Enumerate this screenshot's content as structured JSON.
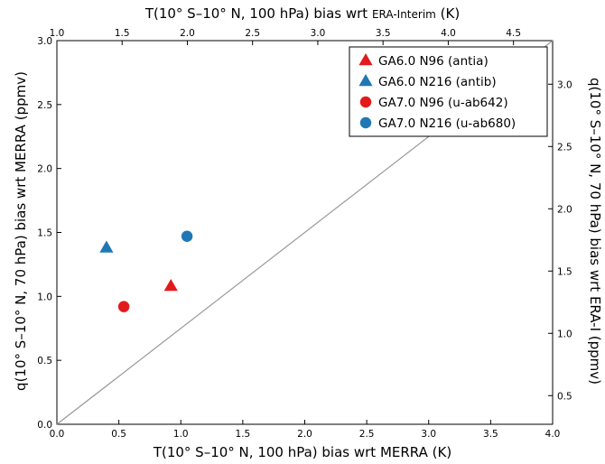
{
  "chart_data": {
    "type": "scatter",
    "bottom_axis": {
      "label": "T(10° S–10° N, 100 hPa) bias wrt MERRA (K)",
      "range": [
        0.0,
        4.0
      ],
      "ticks": [
        "0.0",
        "0.5",
        "1.0",
        "1.5",
        "2.0",
        "2.5",
        "3.0",
        "3.5",
        "4.0"
      ]
    },
    "left_axis": {
      "label": "q(10° S–10° N, 70 hPa) bias wrt MERRA (ppmv)",
      "range": [
        0.0,
        3.0
      ],
      "ticks": [
        "0.0",
        "0.5",
        "1.0",
        "1.5",
        "2.0",
        "2.5",
        "3.0"
      ]
    },
    "top_axis": {
      "label_main": "T(10° S–10° N, 100 hPa) bias wrt ",
      "label_tail": "ERA-Interim",
      "label_unit": " (K)",
      "range": [
        1.0,
        4.8
      ],
      "ticks": [
        "1.0",
        "1.5",
        "2.0",
        "2.5",
        "3.0",
        "3.5",
        "4.0",
        "4.5"
      ]
    },
    "right_axis": {
      "label": "q(10° S–10° N, 70 hPa) bias wrt ERA-I (ppmv)",
      "range": [
        0.27,
        3.35
      ],
      "ticks": [
        "0.5",
        "1.0",
        "1.5",
        "2.0",
        "2.5",
        "3.0"
      ]
    },
    "reference_line": {
      "from": [
        0.0,
        0.0
      ],
      "to": [
        4.0,
        3.0
      ],
      "color": "#999999"
    },
    "series": [
      {
        "name": "GA6.0 N96 (antia)",
        "marker": "triangle",
        "color": "#e31a1c",
        "x": 0.92,
        "y": 1.08
      },
      {
        "name": "GA6.0 N216 (antib)",
        "marker": "triangle",
        "color": "#1f78b4",
        "x": 0.4,
        "y": 1.38
      },
      {
        "name": "GA7.0 N96 (u-ab642)",
        "marker": "circle",
        "color": "#e31a1c",
        "x": 0.54,
        "y": 0.92
      },
      {
        "name": "GA7.0 N216 (u-ab680)",
        "marker": "circle",
        "color": "#1f78b4",
        "x": 1.05,
        "y": 1.47
      }
    ],
    "legend_position": "top-right",
    "grid": false
  }
}
